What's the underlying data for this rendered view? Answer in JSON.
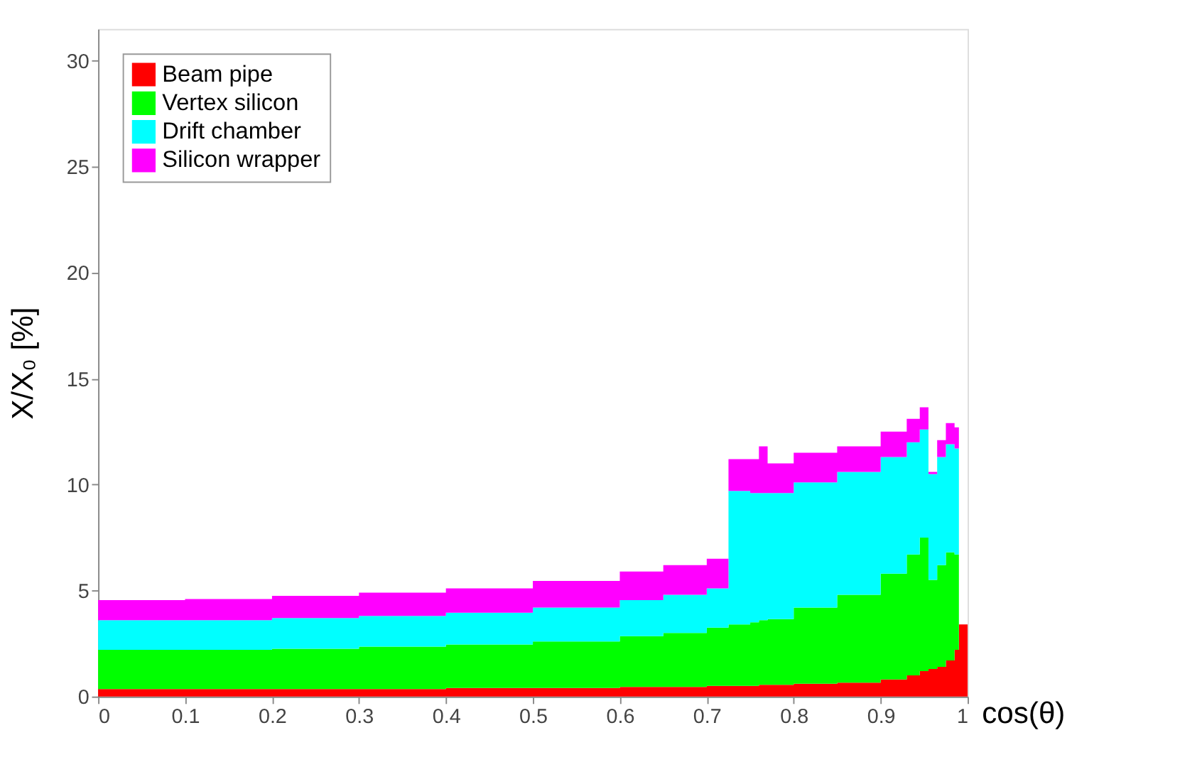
{
  "chart_data": {
    "type": "area",
    "stacked": true,
    "xlabel": "cos(θ)",
    "ylabel": "X/X₀ [%]",
    "x": [
      0,
      0.1,
      0.2,
      0.3,
      0.4,
      0.5,
      0.6,
      0.65,
      0.7,
      0.725,
      0.75,
      0.76,
      0.77,
      0.8,
      0.85,
      0.9,
      0.93,
      0.945,
      0.955,
      0.965,
      0.975,
      0.985,
      0.99,
      1.0
    ],
    "series": [
      {
        "name": "Beam pipe",
        "color": "#ff0000",
        "values": [
          0.35,
          0.35,
          0.35,
          0.35,
          0.4,
          0.4,
          0.45,
          0.45,
          0.5,
          0.5,
          0.5,
          0.55,
          0.55,
          0.6,
          0.65,
          0.8,
          1.0,
          1.2,
          1.3,
          1.4,
          1.7,
          2.2,
          3.4,
          3.4
        ]
      },
      {
        "name": "Vertex silicon",
        "color": "#00ff00",
        "values": [
          1.85,
          1.85,
          1.9,
          2.0,
          2.05,
          2.2,
          2.4,
          2.55,
          2.75,
          2.9,
          3.0,
          3.05,
          3.1,
          3.6,
          4.15,
          5.0,
          5.7,
          6.3,
          4.2,
          4.8,
          5.1,
          4.5,
          0,
          0
        ]
      },
      {
        "name": "Drift chamber",
        "color": "#00ffff",
        "values": [
          1.4,
          1.4,
          1.45,
          1.45,
          1.5,
          1.6,
          1.7,
          1.8,
          1.85,
          6.3,
          6.1,
          6.0,
          5.95,
          5.9,
          5.8,
          5.5,
          5.3,
          5.1,
          5.0,
          5.1,
          5.1,
          5.0,
          0,
          0
        ]
      },
      {
        "name": "Silicon wrapper",
        "color": "#ff00ff",
        "values": [
          0.95,
          1.0,
          1.05,
          1.1,
          1.15,
          1.25,
          1.35,
          1.4,
          1.4,
          1.5,
          1.6,
          2.2,
          1.4,
          1.4,
          1.2,
          1.2,
          1.1,
          1.05,
          0.1,
          0.8,
          1.0,
          1.0,
          0,
          0
        ]
      }
    ],
    "xlim": [
      0,
      1
    ],
    "xticks": [
      0,
      0.1,
      0.2,
      0.3,
      0.4,
      0.5,
      0.6,
      0.7,
      0.8,
      0.9,
      1
    ],
    "ylim": [
      0,
      31.5
    ],
    "yticks": [
      0,
      5,
      10,
      15,
      20,
      25,
      30
    ],
    "grid": false,
    "legend": "top left"
  }
}
